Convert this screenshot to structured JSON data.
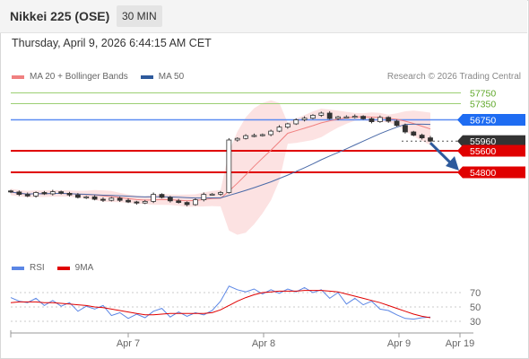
{
  "header": {
    "instrument": "Nikkei 225 (OSE)",
    "timeframe": "30 MIN"
  },
  "datetime": "Thursday, April 9, 2026 6:44:15 AM CET",
  "legend": {
    "ma20_label": "MA 20 + Bollinger Bands",
    "ma50_label": "MA 50",
    "ma20_color": "#f08080",
    "ma50_color": "#2e5a9c"
  },
  "copyright": "Research © 2026 Trading Central",
  "rsi_legend": {
    "rsi_label": "RSI",
    "ma9_label": "9MA",
    "rsi_color": "#5b86e5",
    "ma9_color": "#e00000"
  },
  "chart_data": [
    {
      "type": "candlestick",
      "title": "Nikkei 225 (OSE) 30 MIN",
      "y_range": [
        52600,
        58200
      ],
      "x_ticks": [
        "Apr 7",
        "Apr 8",
        "Apr 9",
        "Apr 19"
      ],
      "levels": [
        {
          "value": 57750,
          "label": "57750",
          "kind": "target",
          "color": "#5fa82a"
        },
        {
          "value": 57350,
          "label": "57350",
          "kind": "target",
          "color": "#5fa82a"
        },
        {
          "value": 56750,
          "label": "56750",
          "kind": "pivot",
          "color": "#1e6cf2"
        },
        {
          "value": 55960,
          "label": "55960",
          "kind": "last",
          "color": "#333333"
        },
        {
          "value": 55600,
          "label": "55600",
          "kind": "support",
          "color": "#e00000"
        },
        {
          "value": 54800,
          "label": "54800",
          "kind": "support",
          "color": "#e00000"
        }
      ],
      "approx_close_path": [
        54070,
        53980,
        53920,
        54050,
        54000,
        54080,
        54020,
        53960,
        53870,
        53890,
        53800,
        53760,
        53840,
        53760,
        53700,
        53660,
        53720,
        53980,
        53870,
        53740,
        53680,
        53600,
        53780,
        53980,
        53990,
        54050,
        56000,
        56060,
        56160,
        56170,
        56200,
        56330,
        56480,
        56600,
        56750,
        56810,
        56920,
        57000,
        56800,
        56860,
        56860,
        56880,
        56790,
        56680,
        56840,
        56700,
        56540,
        56300,
        56180,
        56080,
        55960
      ],
      "forecast": "down toward 54800"
    },
    {
      "type": "line",
      "title": "RSI",
      "y_ticks": [
        30,
        50,
        70
      ],
      "series": [
        {
          "name": "RSI",
          "values": [
            63,
            58,
            56,
            62,
            52,
            59,
            51,
            56,
            44,
            51,
            47,
            52,
            38,
            42,
            34,
            40,
            35,
            44,
            48,
            36,
            43,
            37,
            42,
            39,
            45,
            58,
            79,
            74,
            71,
            75,
            68,
            74,
            69,
            75,
            71,
            77,
            70,
            74,
            62,
            70,
            54,
            62,
            53,
            58,
            47,
            45,
            39,
            34,
            33,
            35,
            36
          ]
        },
        {
          "name": "9MA",
          "values": [
            56,
            57,
            57,
            57,
            56,
            56,
            55,
            54,
            53,
            52,
            50,
            49,
            47,
            45,
            43,
            41,
            39,
            39,
            40,
            41,
            41,
            41,
            41,
            41,
            42,
            46,
            52,
            58,
            63,
            67,
            70,
            71,
            72,
            72,
            72,
            73,
            73,
            73,
            72,
            71,
            68,
            65,
            62,
            59,
            56,
            52,
            48,
            44,
            40,
            37,
            35
          ]
        }
      ]
    }
  ]
}
